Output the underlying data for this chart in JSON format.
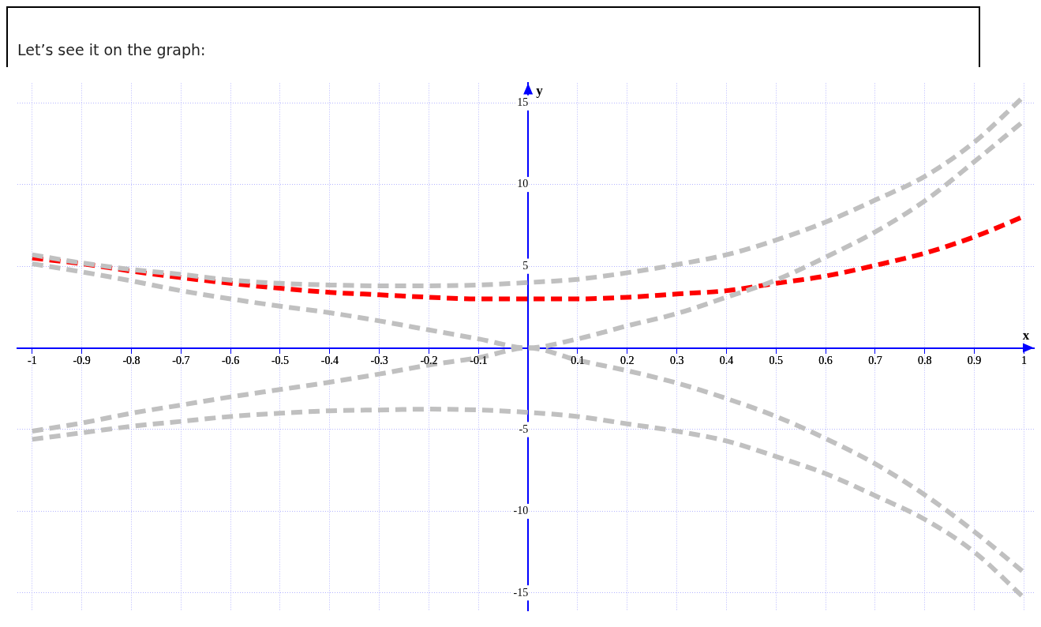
{
  "chart_data": {
    "type": "line",
    "title": "Let’s see it on the graph:",
    "xlabel": "x",
    "ylabel": "y",
    "x": [
      -1,
      -0.9,
      -0.8,
      -0.7,
      -0.6,
      -0.5,
      -0.4,
      -0.3,
      -0.2,
      -0.1,
      0,
      0.1,
      0.2,
      0.3,
      0.4,
      0.5,
      0.6,
      0.7,
      0.8,
      0.9,
      1
    ],
    "series": [
      {
        "color": "#c0c0c0",
        "values": [
          5.7,
          5.2,
          4.8,
          4.5,
          4.15,
          3.95,
          3.85,
          3.8,
          3.8,
          3.85,
          4.0,
          4.2,
          4.6,
          5.1,
          5.7,
          6.6,
          7.7,
          9.05,
          10.5,
          12.6,
          15.4
        ]
      },
      {
        "color": "#c0c0c0",
        "values": [
          5.15,
          4.65,
          4.1,
          3.5,
          3.0,
          2.55,
          2.15,
          1.65,
          1.1,
          0.55,
          0,
          0.55,
          1.35,
          2.1,
          3.1,
          4.15,
          5.55,
          7.1,
          9.0,
          11.4,
          13.9
        ]
      },
      {
        "color": "#c0c0c0",
        "values": [
          -5.1,
          -4.6,
          -4.0,
          -3.5,
          -3.0,
          -2.55,
          -2.1,
          -1.6,
          -1.05,
          -0.6,
          0,
          -0.75,
          -1.4,
          -2.15,
          -3.1,
          -4.2,
          -5.55,
          -7.1,
          -9.0,
          -11.25,
          -13.75
        ]
      },
      {
        "color": "#c0c0c0",
        "values": [
          -5.6,
          -5.2,
          -4.8,
          -4.5,
          -4.2,
          -4.0,
          -3.85,
          -3.8,
          -3.75,
          -3.8,
          -3.95,
          -4.2,
          -4.65,
          -5.1,
          -5.7,
          -6.65,
          -7.7,
          -9.05,
          -10.5,
          -12.5,
          -15.3
        ]
      },
      {
        "color": "#ff0000",
        "values": [
          5.5,
          5.15,
          4.7,
          4.3,
          3.95,
          3.65,
          3.4,
          3.25,
          3.1,
          3.0,
          3.0,
          3.0,
          3.1,
          3.3,
          3.5,
          3.95,
          4.4,
          5.05,
          5.8,
          6.8,
          8.05
        ]
      }
    ],
    "xlim": [
      -1.03,
      1.02
    ],
    "ylim": [
      -16.1,
      16.2
    ],
    "xticks": [
      -1,
      -0.9,
      -0.8,
      -0.7,
      -0.6,
      -0.5,
      -0.4,
      -0.3,
      -0.2,
      -0.1,
      0.1,
      0.2,
      0.3,
      0.4,
      0.5,
      0.6,
      0.7,
      0.8,
      0.9,
      1
    ],
    "yticks": [
      -15,
      -10,
      -5,
      5,
      10,
      15
    ],
    "grid": true,
    "legend": false,
    "marker": "none",
    "line_style": "dashed"
  }
}
